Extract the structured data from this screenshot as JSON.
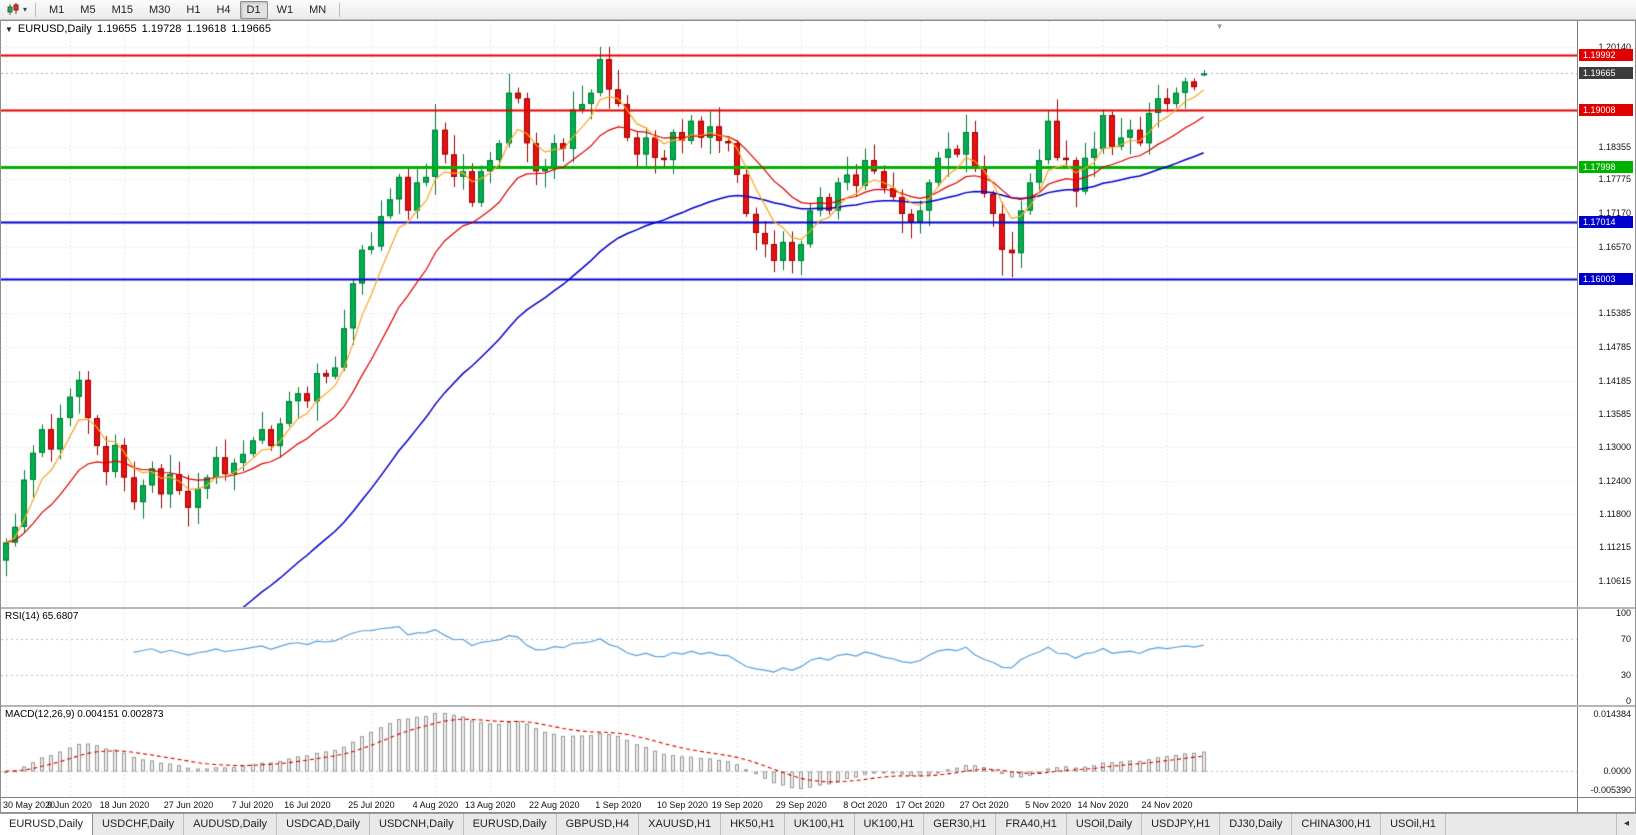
{
  "toolbar": {
    "timeframes": [
      "M1",
      "M5",
      "M15",
      "M30",
      "H1",
      "H4",
      "D1",
      "W1",
      "MN"
    ],
    "active_timeframe": "D1"
  },
  "icons": {
    "collapse_icon": "▼",
    "dropdown_icon": "▾",
    "tabs_scroll_left_icon": "◂",
    "shift_marker_icon": "▼"
  },
  "chart": {
    "title": "EURUSD,Daily",
    "ohlc": {
      "open": "1.19655",
      "high": "1.19728",
      "low": "1.19618",
      "close": "1.19665"
    },
    "current_price": "1.19665",
    "price_scale": {
      "ticks": [
        "1.20140",
        "1.18355",
        "1.17775",
        "1.17170",
        "1.16570",
        "1.15385",
        "1.14785",
        "1.14185",
        "1.13585",
        "1.13000",
        "1.12400",
        "1.11800",
        "1.11215",
        "1.10615"
      ]
    }
  },
  "rsi": {
    "label": "RSI(14) 65.6807",
    "scale": [
      "100",
      "70",
      "30",
      "0"
    ],
    "level_lines": [
      70,
      30
    ]
  },
  "macd": {
    "label": "MACD(12,26,9) 0.004151 0.002873",
    "scale": {
      "top": "0.014384",
      "zero": "0.0000",
      "bottom": "-0.005390"
    }
  },
  "tabs": {
    "active_index": 0,
    "items": [
      "EURUSD,Daily",
      "USDCHF,Daily",
      "AUDUSD,Daily",
      "USDCAD,Daily",
      "USDCNH,Daily",
      "EURUSD,Daily",
      "GBPUSD,H4",
      "XAUUSD,H1",
      "HK50,H1",
      "UK100,H1",
      "UK100,H1",
      "GER30,H1",
      "FRA40,H1",
      "USOil,Daily",
      "USDJPY,H1",
      "DJ30,Daily",
      "CHINA300,H1",
      "USOil,H1"
    ]
  },
  "colors": {
    "background": "#ffffff",
    "grid": "#d2d2d2",
    "bull": "#00b050",
    "bull_border": "#007a35",
    "bear": "#e81010",
    "bear_border": "#9c0000",
    "ma_fast": "#f5a623",
    "ma_medium": "#dd0000",
    "ma_slow": "#0000cc",
    "rsi_line": "#5aa0d8",
    "macd_hist_fill": "#ededed",
    "macd_hist_border": "#9a9a9a",
    "macd_signal": "#dd0000",
    "badge_current_bg": "#3c3c3c",
    "current_price_line": "#ababab"
  },
  "chart_data": {
    "type": "candlestick",
    "symbol": "EURUSD",
    "timeframe": "Daily",
    "x_labels": [
      "30 May 2020",
      "9 Jun 2020",
      "18 Jun 2020",
      "27 Jun 2020",
      "7 Jul 2020",
      "16 Jul 2020",
      "25 Jul 2020",
      "4 Aug 2020",
      "13 Aug 2020",
      "22 Aug 2020",
      "1 Sep 2020",
      "10 Sep 2020",
      "19 Sep 2020",
      "29 Sep 2020",
      "8 Oct 2020",
      "17 Oct 2020",
      "27 Oct 2020",
      "5 Nov 2020",
      "14 Nov 2020",
      "24 Nov 2020"
    ],
    "price_range": {
      "min": 1.1015,
      "max": 1.206
    },
    "open_first": 1.1098,
    "closes": [
      1.113,
      1.1158,
      1.1242,
      1.129,
      1.1332,
      1.1296,
      1.1352,
      1.139,
      1.142,
      1.1352,
      1.1302,
      1.1256,
      1.1304,
      1.1246,
      1.1202,
      1.1232,
      1.1262,
      1.1216,
      1.1252,
      1.1222,
      1.1192,
      1.1226,
      1.1246,
      1.1282,
      1.1252,
      1.1272,
      1.1288,
      1.1312,
      1.1332,
      1.1302,
      1.1342,
      1.1382,
      1.1396,
      1.1382,
      1.1432,
      1.1426,
      1.1442,
      1.1512,
      1.1592,
      1.1652,
      1.1658,
      1.1712,
      1.1742,
      1.1782,
      1.1722,
      1.1772,
      1.1782,
      1.1866,
      1.1822,
      1.1782,
      1.1792,
      1.1736,
      1.1792,
      1.1812,
      1.1842,
      1.1932,
      1.1922,
      1.1842,
      1.1792,
      1.1796,
      1.1842,
      1.1832,
      1.1902,
      1.1912,
      1.1932,
      1.1992,
      1.1938,
      1.1912,
      1.1852,
      1.1822,
      1.1852,
      1.1816,
      1.1812,
      1.1862,
      1.1846,
      1.1882,
      1.1852,
      1.1872,
      1.1846,
      1.1842,
      1.1786,
      1.1716,
      1.1682,
      1.1662,
      1.1632,
      1.1666,
      1.1632,
      1.1662,
      1.1722,
      1.1746,
      1.1722,
      1.1772,
      1.1786,
      1.1766,
      1.1812,
      1.1792,
      1.1762,
      1.1746,
      1.1716,
      1.1702,
      1.1722,
      1.1772,
      1.1816,
      1.1832,
      1.1822,
      1.1862,
      1.1796,
      1.1752,
      1.1716,
      1.1652,
      1.1646,
      1.1722,
      1.1772,
      1.1812,
      1.1882,
      1.1816,
      1.1812,
      1.1756,
      1.1816,
      1.1832,
      1.1892,
      1.1836,
      1.1852,
      1.1866,
      1.1842,
      1.1896,
      1.1922,
      1.1912,
      1.1932,
      1.1952,
      1.1942,
      1.19665
    ],
    "high_overrides": {
      "47": 1.1912,
      "55": 1.1966,
      "66": 1.2014,
      "115": 1.192
    },
    "low_overrides": {
      "84": 1.1612,
      "86": 1.161,
      "109": 1.1606,
      "110": 1.1603
    },
    "last_candle": {
      "open": 1.19655,
      "high": 1.19728,
      "low": 1.19618,
      "close": 1.19665
    },
    "levels": [
      {
        "price": 1.19992,
        "label": "1.19992",
        "color": "#e00000",
        "width": 2
      },
      {
        "price": 1.19008,
        "label": "1.19008",
        "color": "#e00000",
        "width": 2
      },
      {
        "price": 1.17998,
        "label": "1.17998",
        "color": "#00b200",
        "width": 3
      },
      {
        "price": 1.17014,
        "label": "1.17014",
        "color": "#0000cd",
        "width": 2
      },
      {
        "price": 1.16003,
        "label": "1.16003",
        "color": "#0000cd",
        "width": 2
      }
    ],
    "indicators": {
      "rsi": {
        "period": 14,
        "range": [
          0,
          100
        ],
        "levels": [
          30,
          70
        ],
        "last_value": "65.6807"
      },
      "macd": {
        "fast": 12,
        "slow": 26,
        "signal": 9,
        "range": {
          "min": -0.00539,
          "max": 0.014384
        },
        "last_main": "0.004151",
        "last_signal": "0.002873"
      },
      "moving_averages": [
        {
          "name": "fast",
          "alpha": 0.3,
          "seed": null
        },
        {
          "name": "medium",
          "alpha": 0.12,
          "seed": null
        },
        {
          "name": "slow",
          "alpha": 0.045,
          "seed": 1.04
        }
      ]
    }
  }
}
